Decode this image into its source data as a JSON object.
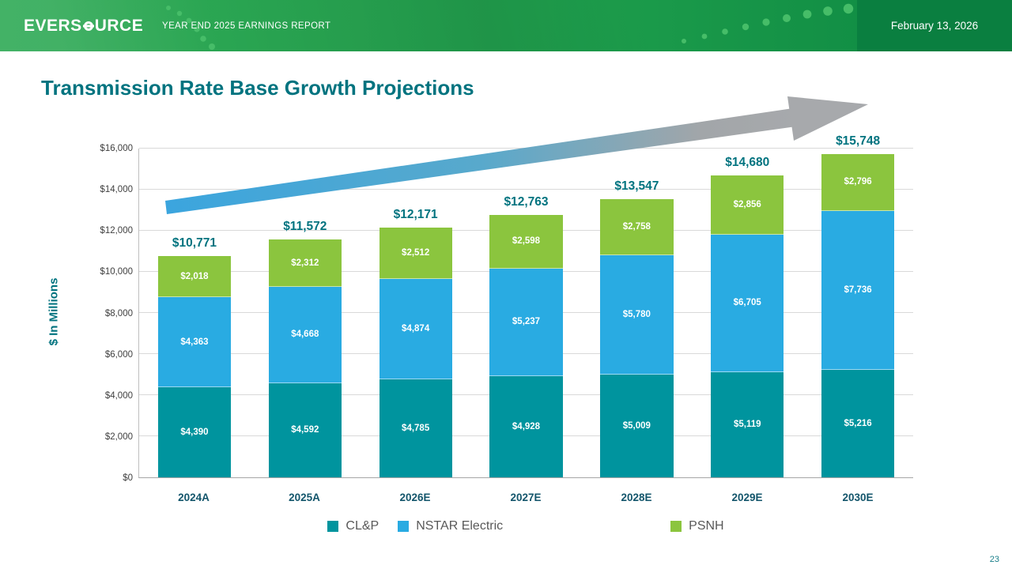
{
  "header": {
    "logo": {
      "pre": "EVERS",
      "post": "URCE"
    },
    "report_title": "YEAR END 2025 EARNINGS REPORT",
    "date": "February 13, 2026"
  },
  "slide": {
    "title": "Transmission Rate Base Growth Projections",
    "page_number": "23"
  },
  "chart_data": {
    "type": "bar",
    "stacked": true,
    "title": "Transmission Rate Base Growth Projections",
    "categories": [
      "2024A",
      "2025A",
      "2026E",
      "2027E",
      "2028E",
      "2029E",
      "2030E"
    ],
    "series": [
      {
        "name": "CL&P",
        "color": "#00949e",
        "values": [
          4390,
          4592,
          4785,
          4928,
          5009,
          5119,
          5216
        ]
      },
      {
        "name": "NSTAR Electric",
        "color": "#29abe2",
        "values": [
          4363,
          4668,
          4874,
          5237,
          5780,
          6705,
          7736
        ]
      },
      {
        "name": "PSNH",
        "color": "#8bc53e",
        "values": [
          2018,
          2312,
          2512,
          2598,
          2758,
          2856,
          2796
        ]
      }
    ],
    "totals": [
      10771,
      11572,
      12171,
      12763,
      13547,
      14680,
      15748
    ],
    "xlabel": "",
    "ylabel": "$ In Millions",
    "ylim": [
      0,
      16000
    ],
    "ytick_step": 2000,
    "value_prefix": "$",
    "grid": true,
    "legend_position": "bottom",
    "annotations": [
      "upward growth trend arrow, blue fading to gray"
    ]
  }
}
